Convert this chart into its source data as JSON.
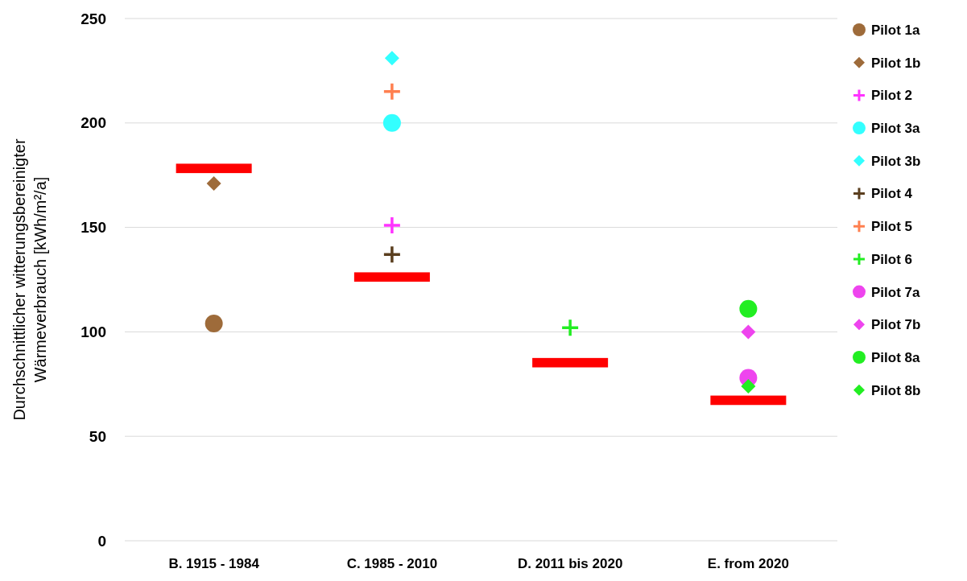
{
  "chart_data": {
    "type": "scatter",
    "ylabel": "Durchschnittlicher witterungsbereinigter\nWärmeverbrauch [kWh/m²/a]",
    "categories": [
      "B. 1915 - 1984",
      "C. 1985 - 2010",
      "D. 2011 bis 2020",
      "E. from 2020"
    ],
    "ylim": [
      0,
      250
    ],
    "yticks": [
      0,
      50,
      100,
      150,
      200,
      250
    ],
    "grid": "y",
    "legend": "right",
    "series": [
      {
        "type": "bar",
        "color": "#ff0000",
        "base": [
          176,
          124,
          83,
          65
        ],
        "values": [
          4.5,
          4.5,
          4.5,
          4.5
        ]
      },
      {
        "name": "Pilot 1a",
        "color": "#9e6b3a",
        "marker": "circle",
        "values": [
          104,
          null,
          null,
          null
        ]
      },
      {
        "name": "Pilot 1b",
        "color": "#9e6b3a",
        "marker": "diamond",
        "values": [
          171,
          null,
          null,
          null
        ]
      },
      {
        "name": "Pilot 2",
        "color": "#ff33ff",
        "marker": "cross",
        "values": [
          null,
          151,
          null,
          null
        ]
      },
      {
        "name": "Pilot 3a",
        "color": "#33ffff",
        "marker": "circle",
        "values": [
          null,
          200,
          null,
          null
        ]
      },
      {
        "name": "Pilot 3b",
        "color": "#33ffff",
        "marker": "diamond",
        "values": [
          null,
          231,
          null,
          null
        ]
      },
      {
        "name": "Pilot 4",
        "color": "#5a3e1e",
        "marker": "cross",
        "values": [
          null,
          137,
          null,
          null
        ]
      },
      {
        "name": "Pilot 5",
        "color": "#ff8050",
        "marker": "cross",
        "values": [
          null,
          215,
          null,
          null
        ]
      },
      {
        "name": "Pilot 6",
        "color": "#22ee22",
        "marker": "cross",
        "values": [
          null,
          null,
          102,
          null
        ]
      },
      {
        "name": "Pilot 7a",
        "color": "#ee44ee",
        "marker": "circle",
        "values": [
          null,
          null,
          null,
          78
        ]
      },
      {
        "name": "Pilot 7b",
        "color": "#ee44ee",
        "marker": "diamond",
        "values": [
          null,
          null,
          null,
          100
        ]
      },
      {
        "name": "Pilot 8a",
        "color": "#22ee22",
        "marker": "circle",
        "values": [
          null,
          null,
          null,
          111
        ]
      },
      {
        "name": "Pilot 8b",
        "color": "#22ee22",
        "marker": "diamond",
        "values": [
          null,
          null,
          null,
          74
        ]
      }
    ]
  }
}
